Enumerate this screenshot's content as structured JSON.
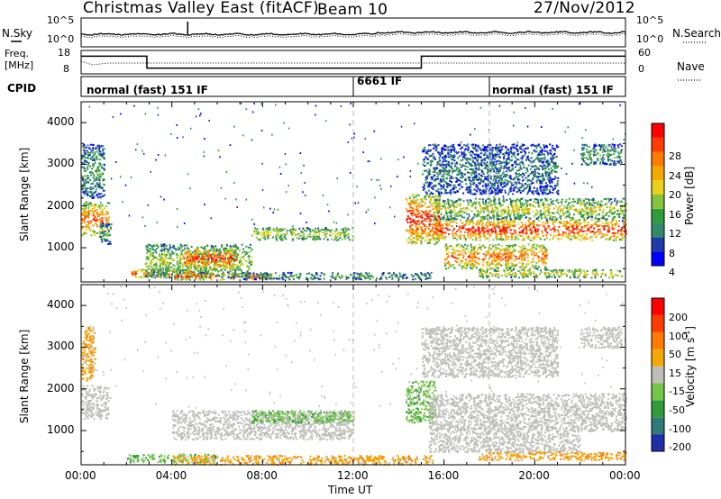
{
  "header": {
    "station": "Christmas Valley East (fitACF)",
    "beam": "Beam 10",
    "date": "27/Nov/2012"
  },
  "noise_panel": {
    "left_label": "N.Sky",
    "right_label": "N.Search",
    "left_ticks": [
      "10^5",
      "10^0"
    ],
    "right_ticks": [
      "10^5",
      "10^0"
    ]
  },
  "freq_panel": {
    "left_label_line1": "Freq.",
    "left_label_line2": "[MHz]",
    "right_label": "Nave",
    "left_ticks": [
      "18",
      "8"
    ],
    "right_ticks": [
      "60",
      "0"
    ]
  },
  "cpid_panel": {
    "label": "CPID",
    "segments": [
      {
        "label": "normal (fast) 151 IF",
        "start_hour": 0
      },
      {
        "label": "6661 IF",
        "start_hour": 12
      },
      {
        "label": "normal (fast) 151 IF",
        "start_hour": 18
      }
    ]
  },
  "power_colorbar": {
    "title": "Power [dB]",
    "ticks": [
      "28",
      "24",
      "20",
      "16",
      "12",
      "8",
      "4"
    ],
    "colors": [
      "#0000ff",
      "#1e3ca8",
      "#2f8a6b",
      "#2e9d3a",
      "#86c23b",
      "#e8d21e",
      "#f5a800",
      "#ff7a00",
      "#ff3c00",
      "#ff0000"
    ]
  },
  "velocity_colorbar": {
    "title": "Velocity [m s^-1]",
    "ticks": [
      "200",
      "100",
      "50",
      "15",
      "-15",
      "-50",
      "-100",
      "-200"
    ],
    "colors": [
      "#1f2fa8",
      "#2e7a78",
      "#2f9b3a",
      "#74c646",
      "#bebeba",
      "#f5a800",
      "#ff7a00",
      "#ff3c00",
      "#ff0000"
    ]
  },
  "chart_data": {
    "type": "heatmap",
    "xlabel": "Time UT",
    "ylabel": "Slant Range [km]",
    "x_ticks": [
      "00:00",
      "04:00",
      "08:00",
      "12:00",
      "16:00",
      "20:00",
      "00:00"
    ],
    "y_ticks": [
      "1000",
      "2000",
      "3000",
      "4000"
    ],
    "xlim_hours": [
      0,
      24
    ],
    "ylim_km": [
      180,
      4500
    ],
    "power_regions": [
      {
        "t0": 0.0,
        "t1": 1.2,
        "r0": 1300,
        "r1": 2100,
        "level": 0.85
      },
      {
        "t0": 0.0,
        "t1": 1.0,
        "r0": 2200,
        "r1": 3500,
        "level": 0.35
      },
      {
        "t0": 0.8,
        "t1": 1.3,
        "r0": 1100,
        "r1": 1600,
        "level": 0.3
      },
      {
        "t0": 2.2,
        "t1": 5.5,
        "r0": 300,
        "r1": 500,
        "level": 0.9
      },
      {
        "t0": 2.8,
        "t1": 7.5,
        "r0": 300,
        "r1": 1100,
        "level": 0.5
      },
      {
        "t0": 4.5,
        "t1": 6.8,
        "r0": 500,
        "r1": 1000,
        "level": 0.95
      },
      {
        "t0": 4.0,
        "t1": 8.5,
        "r0": 250,
        "r1": 400,
        "level": 0.95
      },
      {
        "t0": 7.5,
        "t1": 12.0,
        "r0": 1200,
        "r1": 1500,
        "level": 0.55
      },
      {
        "t0": 6.5,
        "t1": 15.5,
        "r0": 260,
        "r1": 420,
        "level": 0.35
      },
      {
        "t0": 14.3,
        "t1": 15.8,
        "r0": 1100,
        "r1": 2300,
        "level": 0.95
      },
      {
        "t0": 15.5,
        "t1": 24.0,
        "r0": 1200,
        "r1": 1700,
        "level": 0.95
      },
      {
        "t0": 15.5,
        "t1": 24.0,
        "r0": 1700,
        "r1": 2200,
        "level": 0.55
      },
      {
        "t0": 15.0,
        "t1": 21.0,
        "r0": 2300,
        "r1": 3500,
        "level": 0.25
      },
      {
        "t0": 16.0,
        "t1": 20.5,
        "r0": 500,
        "r1": 1100,
        "level": 0.8
      },
      {
        "t0": 17.5,
        "t1": 24.0,
        "r0": 300,
        "r1": 500,
        "level": 0.6
      },
      {
        "t0": 22.0,
        "t1": 23.8,
        "r0": 3000,
        "r1": 3500,
        "level": 0.35
      }
    ],
    "velocity_regions": [
      {
        "t0": 0.0,
        "t1": 1.2,
        "r0": 1300,
        "r1": 2100,
        "kind": "ground"
      },
      {
        "t0": 0.0,
        "t1": 0.6,
        "r0": 2200,
        "r1": 3500,
        "kind": "away"
      },
      {
        "t0": 2.0,
        "t1": 6.0,
        "r0": 250,
        "r1": 450,
        "kind": "toward_slow"
      },
      {
        "t0": 4.0,
        "t1": 15.5,
        "r0": 200,
        "r1": 420,
        "kind": "away"
      },
      {
        "t0": 4.0,
        "t1": 12.0,
        "r0": 800,
        "r1": 1500,
        "kind": "ground"
      },
      {
        "t0": 7.5,
        "t1": 12.0,
        "r0": 1200,
        "r1": 1500,
        "kind": "toward_slow"
      },
      {
        "t0": 14.3,
        "t1": 15.6,
        "r0": 1200,
        "r1": 2200,
        "kind": "toward_slow"
      },
      {
        "t0": 15.3,
        "t1": 24.0,
        "r0": 1000,
        "r1": 1900,
        "kind": "ground"
      },
      {
        "t0": 15.3,
        "t1": 22.0,
        "r0": 500,
        "r1": 1000,
        "kind": "ground"
      },
      {
        "t0": 15.0,
        "t1": 21.0,
        "r0": 2300,
        "r1": 3500,
        "kind": "ground"
      },
      {
        "t0": 17.5,
        "t1": 24.0,
        "r0": 300,
        "r1": 500,
        "kind": "away"
      },
      {
        "t0": 22.0,
        "t1": 23.8,
        "r0": 3000,
        "r1": 3500,
        "kind": "ground"
      }
    ]
  }
}
